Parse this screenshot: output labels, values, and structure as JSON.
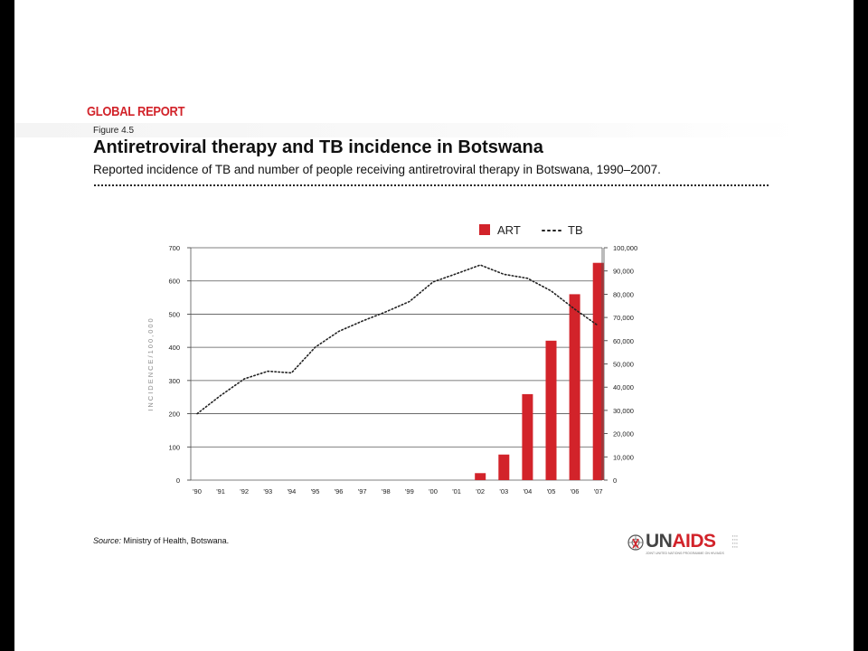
{
  "header": {
    "report_label": "GLOBAL REPORT",
    "figure_number": "Figure 4.5",
    "title": "Antiretroviral therapy and TB incidence in Botswana",
    "subtitle": "Reported incidence of TB and number of people receiving antiretroviral therapy in Botswana, 1990–2007."
  },
  "footer": {
    "source_label": "Source:",
    "source_text": " Ministry of Health, Botswana.",
    "logo_text": "UNAIDS",
    "logo_tagline": "JOINT UNITED NATIONS PROGRAMME ON HIV/AIDS"
  },
  "colors": {
    "accent": "#d2232a",
    "text": "#111111",
    "grid": "#555555"
  },
  "chart_data": {
    "type": "bar",
    "categories": [
      "'90",
      "'91",
      "'92",
      "'93",
      "'94",
      "'95",
      "'96",
      "'97",
      "'98",
      "'99",
      "'00",
      "'01",
      "'02",
      "'03",
      "'04",
      "'05",
      "'06",
      "'07"
    ],
    "series": [
      {
        "name": "ART",
        "type": "bar",
        "axis": "right",
        "values": [
          0,
          0,
          0,
          0,
          0,
          0,
          0,
          0,
          0,
          0,
          0,
          0,
          3000,
          11000,
          37000,
          60000,
          80000,
          93500
        ]
      },
      {
        "name": "TB",
        "type": "line",
        "style": "dotted",
        "axis": "left",
        "values": [
          200,
          255,
          305,
          328,
          323,
          400,
          448,
          479,
          507,
          538,
          597,
          622,
          648,
          620,
          608,
          570,
          515,
          465
        ]
      }
    ],
    "ylabel": "INCIDENCE/100,000",
    "ylim": [
      0,
      700
    ],
    "yticks": [
      "0",
      "100",
      "200",
      "300",
      "400",
      "500",
      "600",
      "700"
    ],
    "y2lim": [
      0,
      100000
    ],
    "y2ticks": [
      "0",
      "10,000",
      "20,000",
      "30,000",
      "40,000",
      "50,000",
      "60,000",
      "70,000",
      "80,000",
      "90,000",
      "100,000"
    ],
    "grid": true,
    "legend": "top-right"
  }
}
